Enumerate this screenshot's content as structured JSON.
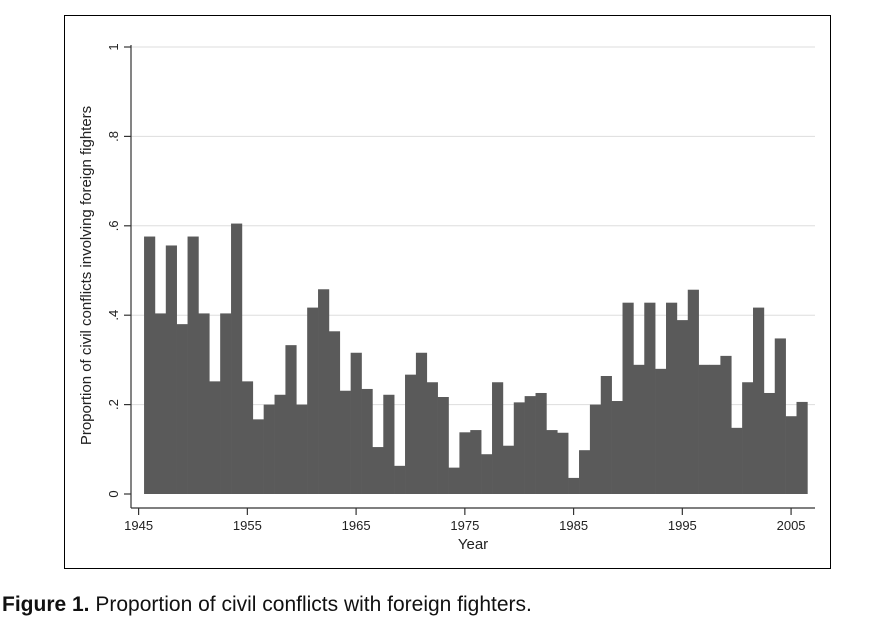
{
  "chart_data": {
    "type": "bar",
    "title": "",
    "xlabel": "Year",
    "ylabel": "Proportion of civil conflicts involving foreign fighters",
    "xlim": [
      1944.3,
      2007.2
    ],
    "ylim": [
      0,
      1
    ],
    "x_ticks": [
      1945,
      1955,
      1965,
      1975,
      1985,
      1995,
      2005
    ],
    "y_ticks": [
      0,
      0.2,
      0.4,
      0.6,
      0.8,
      1
    ],
    "y_tick_labels": [
      "0",
      ".2",
      ".4",
      ".6",
      ".8",
      "1"
    ],
    "grid": true,
    "legend": false,
    "bar_color": "#5a5a5a",
    "grid_color": "#dddddd",
    "x": [
      1946,
      1947,
      1948,
      1949,
      1950,
      1951,
      1952,
      1953,
      1954,
      1955,
      1956,
      1957,
      1958,
      1959,
      1960,
      1961,
      1962,
      1963,
      1964,
      1965,
      1966,
      1967,
      1968,
      1969,
      1970,
      1971,
      1972,
      1973,
      1974,
      1975,
      1976,
      1977,
      1978,
      1979,
      1980,
      1981,
      1982,
      1983,
      1984,
      1985,
      1986,
      1987,
      1988,
      1989,
      1990,
      1991,
      1992,
      1993,
      1994,
      1995,
      1996,
      1997,
      1998,
      1999,
      2000,
      2001,
      2002,
      2003,
      2004,
      2005,
      2006
    ],
    "values": [
      0.576,
      0.404,
      0.556,
      0.38,
      0.576,
      0.404,
      0.252,
      0.404,
      0.605,
      0.252,
      0.167,
      0.2,
      0.222,
      0.333,
      0.2,
      0.417,
      0.458,
      0.364,
      0.231,
      0.316,
      0.235,
      0.105,
      0.222,
      0.063,
      0.267,
      0.316,
      0.25,
      0.217,
      0.059,
      0.138,
      0.143,
      0.089,
      0.25,
      0.108,
      0.205,
      0.219,
      0.226,
      0.143,
      0.137,
      0.036,
      0.098,
      0.2,
      0.264,
      0.208,
      0.428,
      0.289,
      0.428,
      0.28,
      0.428,
      0.389,
      0.457,
      0.289,
      0.289,
      0.309,
      0.148,
      0.25,
      0.417,
      0.226,
      0.348,
      0.174,
      0.206
    ]
  },
  "caption": {
    "label": "Figure 1.",
    "text": " Proportion of civil conflicts with foreign fighters."
  }
}
